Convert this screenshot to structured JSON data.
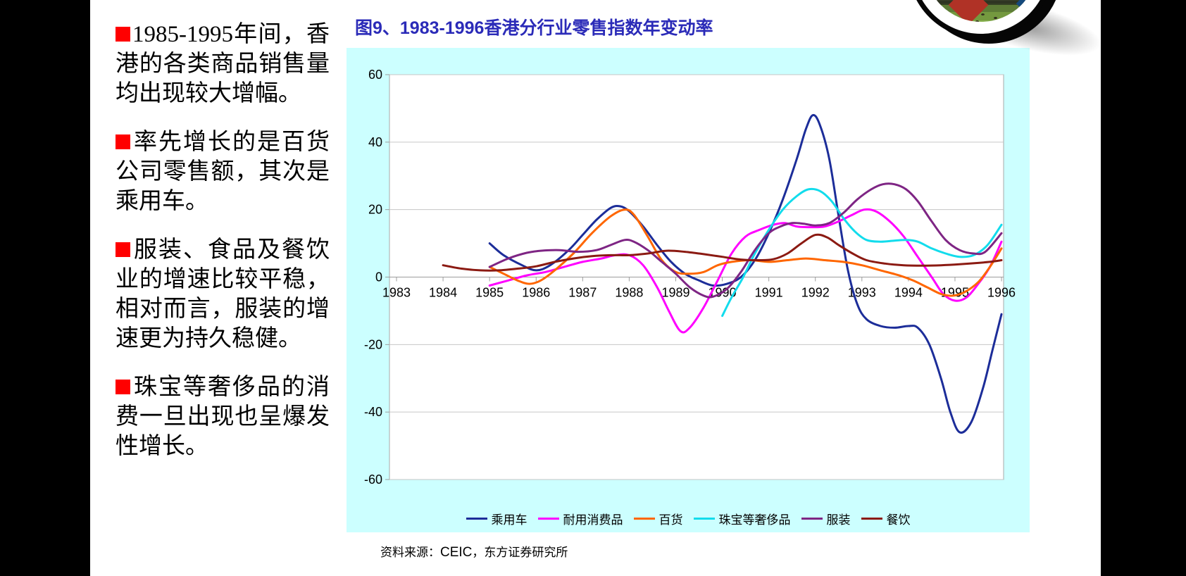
{
  "page": {
    "letterbox_color": "#000000",
    "slide_background": "#FFFFFF"
  },
  "slide": {
    "bullets": [
      "1985-1995年间，香港的各类商品销售量均出现较大增幅。",
      "率先增长的是百货公司零售额，其次是乘用车。",
      "服装、食品及餐饮业的增速比较平稳，相对而言，服装的增速更为持久稳健。",
      "珠宝等奢侈品的消费一旦出现也呈爆发性增长。"
    ],
    "bullet_color": "#FF0000",
    "source_prefix": "资料来源：",
    "source_ceic": "CEIC",
    "source_rest": "，东方证券研究所"
  },
  "chart": {
    "title": "图9、1983-1996香港分行业零售指数年变动率",
    "title_color": "#2B2BB8",
    "panel_bg": "#CCFFFF"
  },
  "chart_data": {
    "type": "line",
    "title": "图9、1983-1996香港分行业零售指数年变动率",
    "xlabel": "",
    "ylabel": "",
    "xlim": [
      1983,
      1996
    ],
    "ylim": [
      -60,
      60
    ],
    "x_ticks": [
      1983,
      1984,
      1985,
      1986,
      1987,
      1988,
      1989,
      1990,
      1991,
      1992,
      1993,
      1994,
      1995,
      1996
    ],
    "y_ticks": [
      60,
      40,
      20,
      0,
      -20,
      -40,
      -60
    ],
    "grid": "horizontal",
    "legend_position": "bottom",
    "plot_bg": "#FFFFFF",
    "panel_bg": "#CCFFFF",
    "series": [
      {
        "id": "passenger-cars",
        "name": "乘用车",
        "color": "#1C2D99",
        "points": [
          [
            1985.0,
            10
          ],
          [
            1985.3,
            6.5
          ],
          [
            1985.7,
            3.5
          ],
          [
            1986.0,
            2
          ],
          [
            1986.3,
            3.5
          ],
          [
            1986.7,
            8
          ],
          [
            1987.0,
            12.5
          ],
          [
            1987.3,
            17
          ],
          [
            1987.6,
            20.5
          ],
          [
            1987.8,
            21
          ],
          [
            1988.0,
            19.5
          ],
          [
            1988.3,
            15
          ],
          [
            1988.6,
            9.5
          ],
          [
            1988.9,
            4.5
          ],
          [
            1989.2,
            1
          ],
          [
            1989.5,
            -1
          ],
          [
            1989.8,
            -2.5
          ],
          [
            1990.1,
            -2
          ],
          [
            1990.4,
            0
          ],
          [
            1990.7,
            5
          ],
          [
            1991.0,
            13
          ],
          [
            1991.3,
            23
          ],
          [
            1991.6,
            35
          ],
          [
            1991.8,
            44
          ],
          [
            1991.95,
            48
          ],
          [
            1992.1,
            45
          ],
          [
            1992.3,
            35
          ],
          [
            1992.5,
            18
          ],
          [
            1992.7,
            2
          ],
          [
            1992.9,
            -8
          ],
          [
            1993.1,
            -12.5
          ],
          [
            1993.4,
            -14.5
          ],
          [
            1993.7,
            -15
          ],
          [
            1994.0,
            -14.5
          ],
          [
            1994.2,
            -15
          ],
          [
            1994.45,
            -20
          ],
          [
            1994.7,
            -30
          ],
          [
            1994.9,
            -40
          ],
          [
            1995.1,
            -46
          ],
          [
            1995.35,
            -43
          ],
          [
            1995.6,
            -33
          ],
          [
            1995.8,
            -22
          ],
          [
            1996.0,
            -11
          ]
        ]
      },
      {
        "id": "durable-goods",
        "name": "耐用消费品",
        "color": "#FF00FF",
        "points": [
          [
            1985.0,
            -2.5
          ],
          [
            1985.4,
            -1
          ],
          [
            1985.8,
            0.5
          ],
          [
            1986.2,
            1.5
          ],
          [
            1986.6,
            3
          ],
          [
            1987.0,
            4.5
          ],
          [
            1987.4,
            5.5
          ],
          [
            1987.7,
            6.5
          ],
          [
            1988.0,
            6.5
          ],
          [
            1988.3,
            3.5
          ],
          [
            1988.6,
            -3
          ],
          [
            1988.85,
            -10
          ],
          [
            1989.1,
            -16
          ],
          [
            1989.3,
            -15
          ],
          [
            1989.6,
            -9
          ],
          [
            1989.9,
            -1
          ],
          [
            1990.2,
            7
          ],
          [
            1990.5,
            12
          ],
          [
            1990.8,
            14
          ],
          [
            1991.1,
            15.5
          ],
          [
            1991.35,
            16
          ],
          [
            1991.6,
            15
          ],
          [
            1991.9,
            14.8
          ],
          [
            1992.2,
            15
          ],
          [
            1992.5,
            16.5
          ],
          [
            1992.8,
            18.5
          ],
          [
            1993.05,
            20
          ],
          [
            1993.3,
            19.5
          ],
          [
            1993.6,
            16.5
          ],
          [
            1993.9,
            12
          ],
          [
            1994.2,
            6
          ],
          [
            1994.5,
            0
          ],
          [
            1994.75,
            -5
          ],
          [
            1995.0,
            -7
          ],
          [
            1995.25,
            -6
          ],
          [
            1995.5,
            -2
          ],
          [
            1995.75,
            3
          ],
          [
            1996.0,
            10.5
          ]
        ]
      },
      {
        "id": "department-stores",
        "name": "百货",
        "color": "#FF6600",
        "points": [
          [
            1985.0,
            3
          ],
          [
            1985.3,
            1
          ],
          [
            1985.6,
            -1
          ],
          [
            1985.85,
            -2
          ],
          [
            1986.1,
            -1
          ],
          [
            1986.4,
            2
          ],
          [
            1986.8,
            7
          ],
          [
            1987.2,
            13
          ],
          [
            1987.6,
            18
          ],
          [
            1987.9,
            20
          ],
          [
            1988.1,
            18.5
          ],
          [
            1988.4,
            12
          ],
          [
            1988.7,
            5
          ],
          [
            1989.0,
            1.5
          ],
          [
            1989.3,
            1
          ],
          [
            1989.6,
            1.5
          ],
          [
            1989.9,
            3.5
          ],
          [
            1990.2,
            4.5
          ],
          [
            1990.6,
            5
          ],
          [
            1991.0,
            4.5
          ],
          [
            1991.4,
            5
          ],
          [
            1991.8,
            5.5
          ],
          [
            1992.2,
            5
          ],
          [
            1992.6,
            4.5
          ],
          [
            1993.0,
            3.5
          ],
          [
            1993.4,
            2
          ],
          [
            1993.8,
            0.5
          ],
          [
            1994.1,
            -1
          ],
          [
            1994.4,
            -3
          ],
          [
            1994.7,
            -5
          ],
          [
            1994.95,
            -5.5
          ],
          [
            1995.2,
            -4.5
          ],
          [
            1995.5,
            -1.5
          ],
          [
            1995.75,
            3
          ],
          [
            1996.0,
            8.5
          ]
        ]
      },
      {
        "id": "jewelry-luxury",
        "name": "珠宝等奢侈品",
        "color": "#12DCEC",
        "points": [
          [
            1990.0,
            -11.5
          ],
          [
            1990.2,
            -6
          ],
          [
            1990.45,
            0
          ],
          [
            1990.7,
            7
          ],
          [
            1991.0,
            14
          ],
          [
            1991.3,
            20
          ],
          [
            1991.6,
            24
          ],
          [
            1991.85,
            26
          ],
          [
            1992.1,
            25.5
          ],
          [
            1992.35,
            22.5
          ],
          [
            1992.6,
            17.5
          ],
          [
            1992.85,
            13.5
          ],
          [
            1993.1,
            11
          ],
          [
            1993.4,
            10.5
          ],
          [
            1993.7,
            10.8
          ],
          [
            1993.95,
            11
          ],
          [
            1994.2,
            10.5
          ],
          [
            1994.5,
            8.5
          ],
          [
            1994.8,
            7
          ],
          [
            1995.1,
            6
          ],
          [
            1995.4,
            6.5
          ],
          [
            1995.7,
            9.5
          ],
          [
            1996.0,
            15.5
          ]
        ]
      },
      {
        "id": "apparel",
        "name": "服装",
        "color": "#7E2584",
        "points": [
          [
            1985.0,
            3
          ],
          [
            1985.4,
            5.5
          ],
          [
            1985.8,
            7.2
          ],
          [
            1986.1,
            7.8
          ],
          [
            1986.5,
            8
          ],
          [
            1986.9,
            7.5
          ],
          [
            1987.3,
            8
          ],
          [
            1987.6,
            9.5
          ],
          [
            1987.9,
            11
          ],
          [
            1988.1,
            10.5
          ],
          [
            1988.4,
            8
          ],
          [
            1988.7,
            4.5
          ],
          [
            1989.0,
            1
          ],
          [
            1989.3,
            -3
          ],
          [
            1989.6,
            -5.5
          ],
          [
            1989.8,
            -5.8
          ],
          [
            1990.1,
            -3.5
          ],
          [
            1990.4,
            1.5
          ],
          [
            1990.7,
            8
          ],
          [
            1991.0,
            13
          ],
          [
            1991.25,
            15
          ],
          [
            1991.5,
            16
          ],
          [
            1991.75,
            15.8
          ],
          [
            1992.0,
            15.3
          ],
          [
            1992.3,
            16
          ],
          [
            1992.6,
            19
          ],
          [
            1992.9,
            23
          ],
          [
            1993.2,
            26
          ],
          [
            1993.45,
            27.5
          ],
          [
            1993.7,
            27.5
          ],
          [
            1993.95,
            26
          ],
          [
            1994.2,
            22.5
          ],
          [
            1994.5,
            16.5
          ],
          [
            1994.8,
            11
          ],
          [
            1995.1,
            8
          ],
          [
            1995.4,
            7
          ],
          [
            1995.65,
            7.5
          ],
          [
            1996.0,
            13
          ]
        ]
      },
      {
        "id": "catering",
        "name": "餐饮",
        "color": "#8B1A12",
        "points": [
          [
            1984.0,
            3.5
          ],
          [
            1984.4,
            2.5
          ],
          [
            1984.8,
            2
          ],
          [
            1985.2,
            2
          ],
          [
            1985.6,
            2.5
          ],
          [
            1986.0,
            3.2
          ],
          [
            1986.4,
            4.5
          ],
          [
            1986.8,
            5.5
          ],
          [
            1987.2,
            6.2
          ],
          [
            1987.6,
            6.5
          ],
          [
            1988.0,
            6.5
          ],
          [
            1988.4,
            7
          ],
          [
            1988.8,
            7.8
          ],
          [
            1989.2,
            7.5
          ],
          [
            1989.6,
            6.8
          ],
          [
            1990.0,
            6
          ],
          [
            1990.4,
            5.2
          ],
          [
            1990.8,
            5
          ],
          [
            1991.1,
            5.3
          ],
          [
            1991.4,
            7
          ],
          [
            1991.7,
            10
          ],
          [
            1992.0,
            12.5
          ],
          [
            1992.25,
            11.8
          ],
          [
            1992.5,
            9.5
          ],
          [
            1992.8,
            7
          ],
          [
            1993.1,
            5
          ],
          [
            1993.5,
            4
          ],
          [
            1993.9,
            3.5
          ],
          [
            1994.3,
            3.4
          ],
          [
            1994.7,
            3.5
          ],
          [
            1995.1,
            3.8
          ],
          [
            1995.5,
            4.2
          ],
          [
            1995.8,
            4.6
          ],
          [
            1996.0,
            5
          ]
        ]
      }
    ]
  }
}
